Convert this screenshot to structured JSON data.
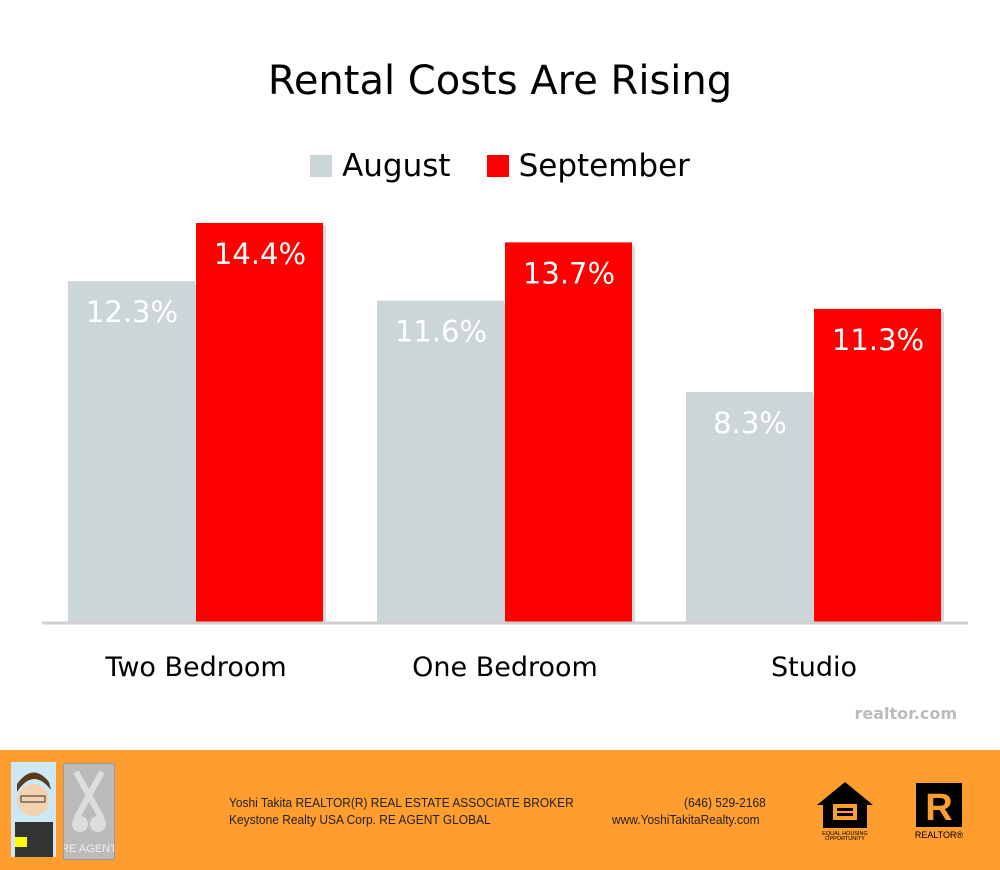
{
  "chart_data": {
    "type": "bar",
    "title": "Rental Costs Are Rising",
    "categories": [
      "Two Bedroom",
      "One Bedroom",
      "Studio"
    ],
    "series": [
      {
        "name": "August",
        "color": "#ccd5d7",
        "values": [
          12.3,
          11.6,
          8.3
        ],
        "labels": [
          "12.3%",
          "11.6%",
          "8.3%"
        ]
      },
      {
        "name": "September",
        "color": "#ff0000",
        "values": [
          14.4,
          13.7,
          11.3
        ],
        "labels": [
          "14.4%",
          "13.7%",
          "11.3%"
        ]
      }
    ],
    "ylim": [
      0,
      14.4
    ],
    "xlabel": "",
    "ylabel": "",
    "grid": false,
    "legend": "top"
  },
  "source": "realtor.com",
  "footer": {
    "line1": "Yoshi Takita REALTOR(R) REAL ESTATE ASSOCIATE BROKER",
    "line2": "Keystone Realty USA Corp.  RE AGENT GLOBAL",
    "phone": "(646) 529-2168",
    "website": "www.YoshiTakitaRealty.com",
    "agent_logo": "RE AGENT",
    "eho": "EQUAL HOUSING OPPORTUNITY",
    "realtor": "REALTOR"
  }
}
